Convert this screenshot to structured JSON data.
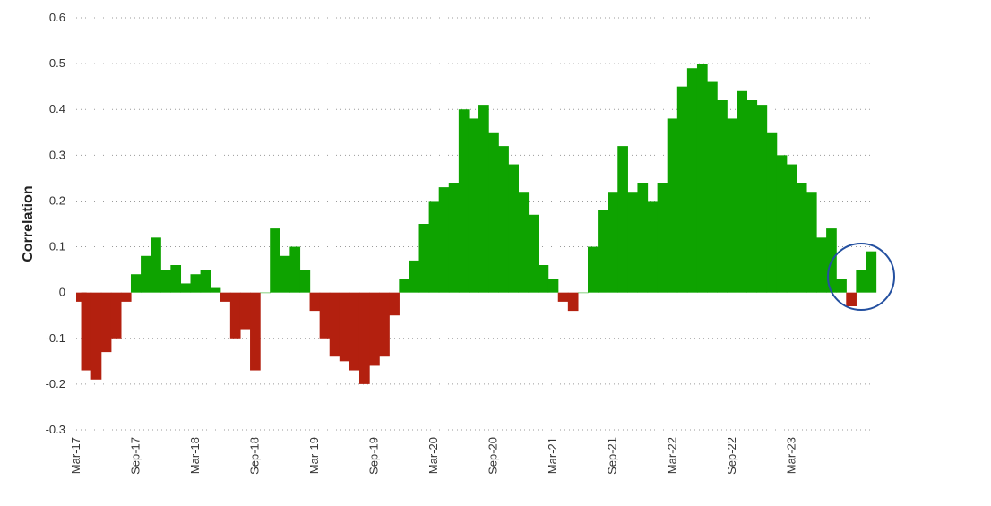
{
  "chart_data": {
    "type": "area",
    "ylabel": "Correlation",
    "xlabel": "",
    "ylim": [
      -0.3,
      0.6
    ],
    "yticks": [
      "-0.3",
      "-0.2",
      "-0.1",
      "0",
      "0.1",
      "0.2",
      "0.3",
      "0.4",
      "0.5",
      "0.6"
    ],
    "xticks": [
      "Mar-17",
      "Sep-17",
      "Mar-18",
      "Sep-18",
      "Mar-19",
      "Sep-19",
      "Mar-20",
      "Sep-20",
      "Mar-21",
      "Sep-21",
      "Mar-22",
      "Sep-22",
      "Mar-23"
    ],
    "grid": "horizontal dotted",
    "colors": {
      "positive": "#0ea300",
      "negative": "#b3200f",
      "highlight_circle": "#2450a0"
    },
    "annotation": "circle highlighting the latest values near zero",
    "x_range": [
      "Mar-17",
      "Nov-23"
    ],
    "series": [
      {
        "values": [
          [
            "Mar-17",
            -0.02
          ],
          [
            "Apr-17",
            -0.17
          ],
          [
            "May-17",
            -0.19
          ],
          [
            "Jun-17",
            -0.13
          ],
          [
            "Jul-17",
            -0.1
          ],
          [
            "Aug-17",
            -0.02
          ],
          [
            "Sep-17",
            0.04
          ],
          [
            "Oct-17",
            0.08
          ],
          [
            "Nov-17",
            0.12
          ],
          [
            "Dec-17",
            0.05
          ],
          [
            "Jan-18",
            0.06
          ],
          [
            "Feb-18",
            0.02
          ],
          [
            "Mar-18",
            0.04
          ],
          [
            "Apr-18",
            0.05
          ],
          [
            "May-18",
            0.01
          ],
          [
            "Jun-18",
            -0.02
          ],
          [
            "Jul-18",
            -0.1
          ],
          [
            "Aug-18",
            -0.08
          ],
          [
            "Sep-18",
            -0.17
          ],
          [
            "Oct-18",
            0.0
          ],
          [
            "Nov-18",
            0.14
          ],
          [
            "Dec-18",
            0.08
          ],
          [
            "Jan-19",
            0.1
          ],
          [
            "Feb-19",
            0.05
          ],
          [
            "Mar-19",
            -0.04
          ],
          [
            "Apr-19",
            -0.1
          ],
          [
            "May-19",
            -0.14
          ],
          [
            "Jun-19",
            -0.15
          ],
          [
            "Jul-19",
            -0.17
          ],
          [
            "Aug-19",
            -0.2
          ],
          [
            "Sep-19",
            -0.16
          ],
          [
            "Oct-19",
            -0.14
          ],
          [
            "Nov-19",
            -0.05
          ],
          [
            "Dec-19",
            0.03
          ],
          [
            "Jan-20",
            0.07
          ],
          [
            "Feb-20",
            0.15
          ],
          [
            "Mar-20",
            0.2
          ],
          [
            "Apr-20",
            0.23
          ],
          [
            "May-20",
            0.24
          ],
          [
            "Jun-20",
            0.4
          ],
          [
            "Jul-20",
            0.38
          ],
          [
            "Aug-20",
            0.41
          ],
          [
            "Sep-20",
            0.35
          ],
          [
            "Oct-20",
            0.32
          ],
          [
            "Nov-20",
            0.28
          ],
          [
            "Dec-20",
            0.22
          ],
          [
            "Jan-21",
            0.17
          ],
          [
            "Feb-21",
            0.06
          ],
          [
            "Mar-21",
            0.03
          ],
          [
            "Apr-21",
            -0.02
          ],
          [
            "May-21",
            -0.04
          ],
          [
            "Jun-21",
            0.0
          ],
          [
            "Jul-21",
            0.1
          ],
          [
            "Aug-21",
            0.18
          ],
          [
            "Sep-21",
            0.22
          ],
          [
            "Oct-21",
            0.32
          ],
          [
            "Nov-21",
            0.22
          ],
          [
            "Dec-21",
            0.24
          ],
          [
            "Jan-22",
            0.2
          ],
          [
            "Feb-22",
            0.24
          ],
          [
            "Mar-22",
            0.38
          ],
          [
            "Apr-22",
            0.45
          ],
          [
            "May-22",
            0.49
          ],
          [
            "Jun-22",
            0.5
          ],
          [
            "Jul-22",
            0.46
          ],
          [
            "Aug-22",
            0.42
          ],
          [
            "Sep-22",
            0.38
          ],
          [
            "Oct-22",
            0.44
          ],
          [
            "Nov-22",
            0.42
          ],
          [
            "Dec-22",
            0.41
          ],
          [
            "Jan-23",
            0.35
          ],
          [
            "Feb-23",
            0.3
          ],
          [
            "Mar-23",
            0.28
          ],
          [
            "Apr-23",
            0.24
          ],
          [
            "May-23",
            0.22
          ],
          [
            "Jun-23",
            0.12
          ],
          [
            "Jul-23",
            0.14
          ],
          [
            "Aug-23",
            0.03
          ],
          [
            "Sep-23",
            -0.03
          ],
          [
            "Oct-23",
            0.05
          ],
          [
            "Nov-23",
            0.09
          ]
        ]
      }
    ]
  }
}
